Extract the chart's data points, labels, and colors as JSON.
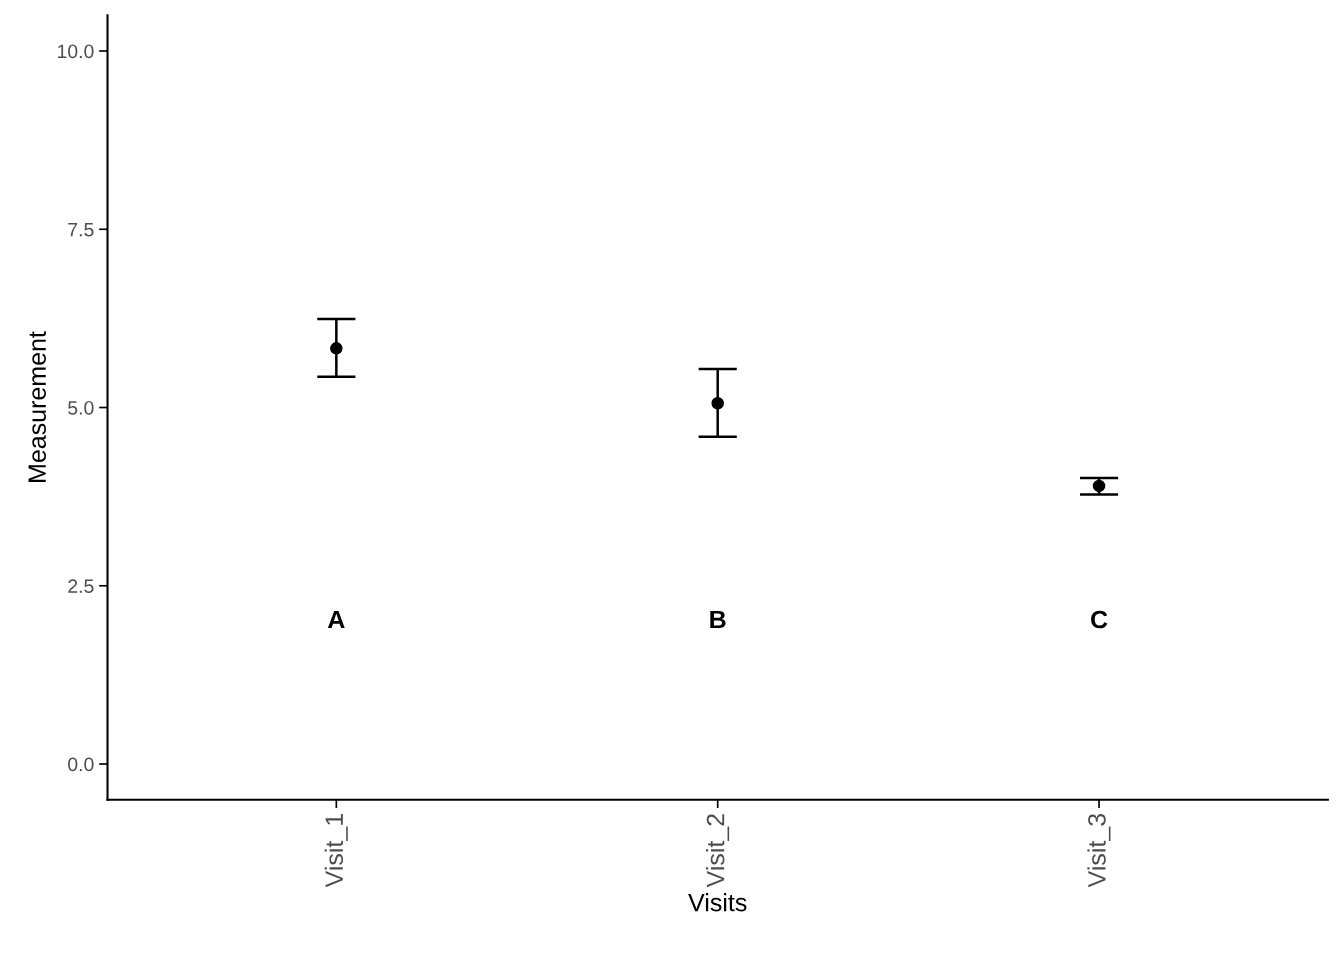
{
  "chart_data": {
    "type": "scatter",
    "xlabel": "Visits",
    "ylabel": "Measurement",
    "categories": [
      "Visit_1",
      "Visit_2",
      "Visit_3"
    ],
    "color": "#000000",
    "values": [
      5.83,
      5.06,
      3.9
    ],
    "errors": [
      [
        5.43,
        6.24
      ],
      [
        4.59,
        5.54
      ],
      [
        3.78,
        4.01
      ]
    ],
    "ylim": [
      -0.5,
      10.5
    ],
    "yticks": [
      {
        "value": 0,
        "label": "0.0"
      },
      {
        "value": 2.5,
        "label": "2.5"
      },
      {
        "value": 5,
        "label": "5.0"
      },
      {
        "value": 7.5,
        "label": "7.5"
      },
      {
        "value": 10,
        "label": "10.0"
      }
    ],
    "annotations": [
      "A",
      "B",
      "C"
    ],
    "marker": "circle",
    "grid": false,
    "legend": false
  }
}
